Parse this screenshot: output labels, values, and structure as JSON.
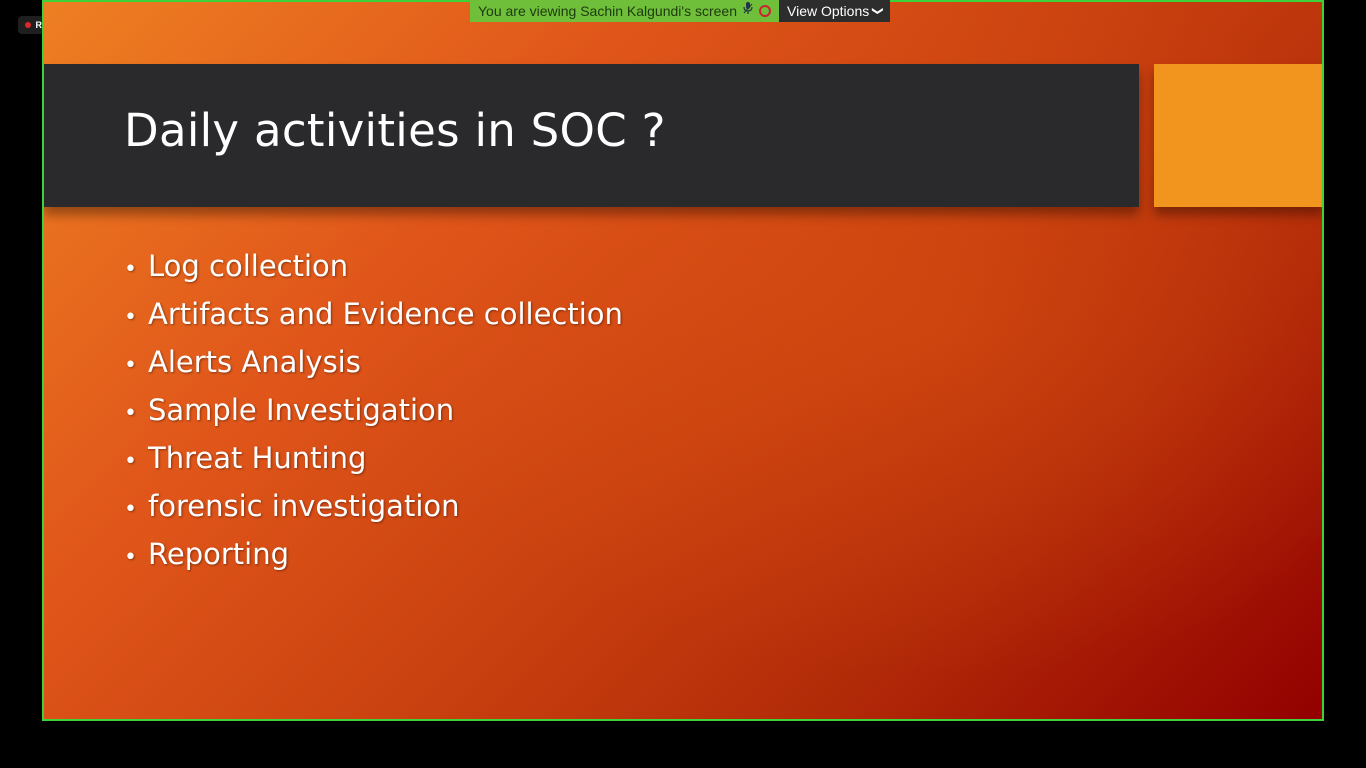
{
  "recording": {
    "label": "REC",
    "dot_color": "#e02828"
  },
  "share_banner": {
    "message": "You are viewing Sachin Kalgundi's screen",
    "mic_icon": "mic-icon",
    "record_icon": "record-icon",
    "view_options_label": "View Options",
    "chevron_icon": "chevron-down-icon"
  },
  "slide": {
    "title": "Daily activities in SOC ?",
    "bullet_symbol": "•",
    "items": [
      "Log collection",
      "Artifacts and Evidence collection",
      "Alerts Analysis",
      "Sample Investigation",
      "Threat Hunting",
      "forensic investigation",
      "Reporting"
    ],
    "colors": {
      "title_band": "#2a2a2c",
      "accent": "#f2951f",
      "background_start": "#ee7f22",
      "background_end": "#930000",
      "frame": "#3dd13a"
    }
  }
}
